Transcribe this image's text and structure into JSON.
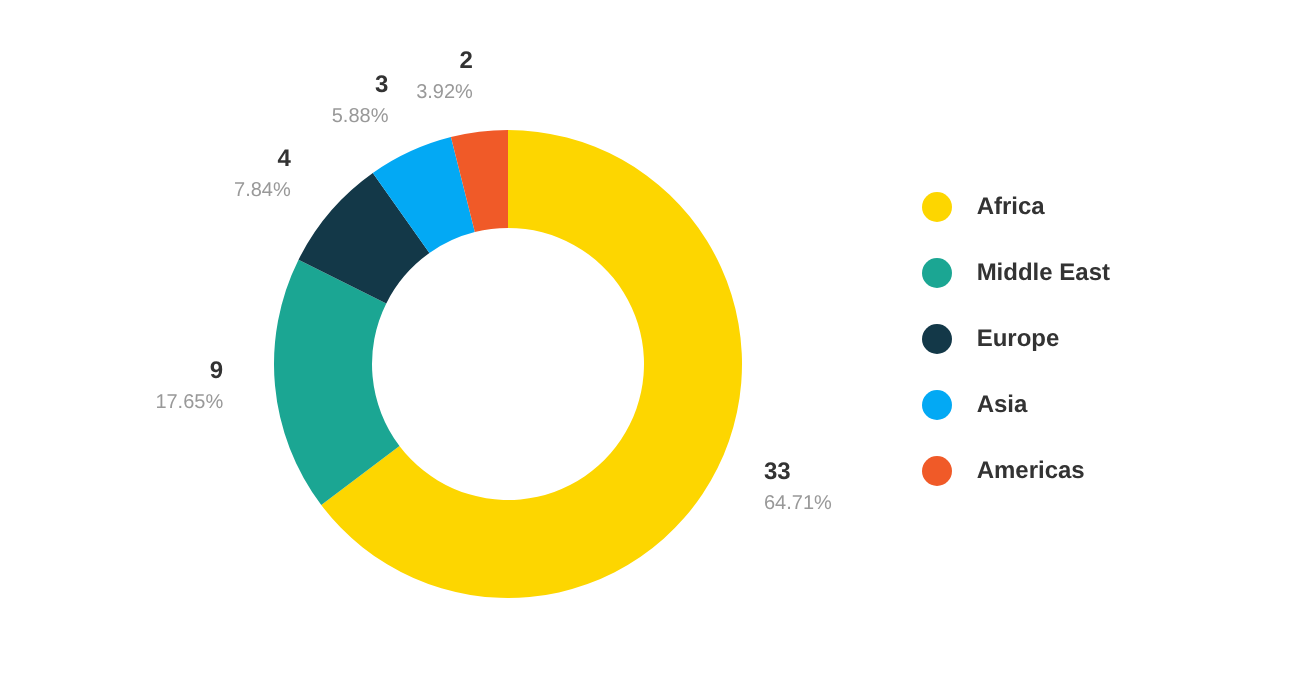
{
  "chart_data": {
    "type": "donut",
    "categories": [
      "Africa",
      "Middle East",
      "Europe",
      "Asia",
      "Americas"
    ],
    "values": [
      33,
      9,
      4,
      3,
      2
    ],
    "colors": [
      "#fdd600",
      "#1ba693",
      "#133848",
      "#03a9f4",
      "#f05a28"
    ],
    "value_labels": [
      "33\n64.71%",
      "9\n17.65%",
      "4\n7.84%",
      "3\n5.88%",
      "2\n3.92%"
    ],
    "legend": "right"
  }
}
